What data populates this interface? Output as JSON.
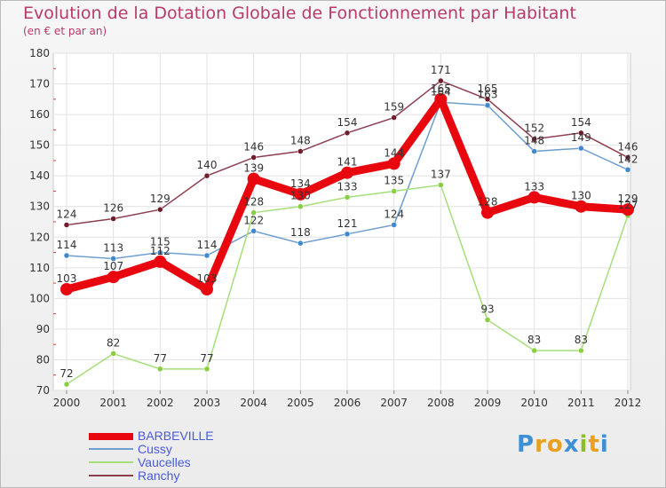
{
  "title": "Evolution de la Dotation Globale de Fonctionnement par Habitant",
  "subtitle": "(en € et par an)",
  "logo": {
    "text": "Proxiti",
    "colors": [
      "#3d8fd6",
      "#e9a01c",
      "#e9a01c",
      "#3d8fd6",
      "#8ebd2c",
      "#e9a01c",
      "#3d8fd6"
    ]
  },
  "chart_data": {
    "type": "line",
    "x": [
      "2000",
      "2001",
      "2002",
      "2003",
      "2004",
      "2005",
      "2006",
      "2007",
      "2008",
      "2009",
      "2010",
      "2011",
      "2012"
    ],
    "ylim": [
      70,
      180
    ],
    "yticks": [
      70,
      80,
      90,
      100,
      110,
      120,
      130,
      140,
      150,
      160,
      170,
      180
    ],
    "grid": true,
    "legend_position": "bottom-left",
    "series": [
      {
        "name": "BARBEVILLE",
        "color": "#e8070f",
        "emphasis": true,
        "values": [
          103,
          107,
          112,
          103,
          139,
          134,
          141,
          144,
          165,
          128,
          133,
          130,
          129
        ],
        "labels": [
          "103",
          "107",
          "112",
          "103",
          "139",
          "134",
          "141",
          "144",
          "165",
          "128",
          "133",
          "130",
          "129"
        ]
      },
      {
        "name": "Cussy",
        "color": "#6f9fd0",
        "dot": "#3f87cf",
        "values": [
          114,
          113,
          115,
          114,
          122,
          118,
          121,
          124,
          164,
          163,
          148,
          149,
          142
        ],
        "labels": [
          "114",
          "113",
          "115",
          "114",
          "122",
          "118",
          "121",
          "124",
          "164",
          "163",
          "148",
          "149",
          "142"
        ]
      },
      {
        "name": "Vaucelles",
        "color": "#a6de7a",
        "dot": "#86cf3f",
        "values": [
          72,
          82,
          77,
          77,
          128,
          130,
          133,
          135,
          137,
          93,
          83,
          83,
          127
        ],
        "labels": [
          "72",
          "82",
          "77",
          "77",
          "128",
          "130",
          "133",
          "135",
          "137",
          "93",
          "83",
          "83",
          "127"
        ]
      },
      {
        "name": "Ranchy",
        "color": "#8e3f4f",
        "dot": "#6e1d2d",
        "values": [
          124,
          126,
          129,
          140,
          146,
          148,
          154,
          159,
          171,
          165,
          152,
          154,
          146
        ],
        "labels": [
          "124",
          "126",
          "129",
          "140",
          "146",
          "148",
          "154",
          "159",
          "171",
          "165",
          "152",
          "154",
          "146"
        ]
      }
    ]
  }
}
